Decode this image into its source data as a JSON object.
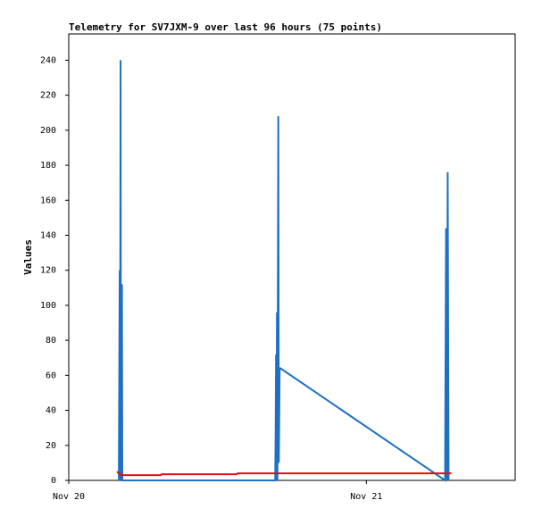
{
  "chart_data": {
    "type": "line",
    "title": "Telemetry for SV7JXM-9 over last 96 hours (75 points)",
    "y_label": "Values",
    "xlim": [
      0,
      36
    ],
    "xticks": [
      {
        "value": 0,
        "label": "Nov 20"
      },
      {
        "value": 24,
        "label": "Nov 21"
      }
    ],
    "ylim": [
      0,
      255
    ],
    "yticks": [
      0,
      20,
      40,
      60,
      80,
      100,
      120,
      140,
      160,
      180,
      200,
      220,
      240
    ],
    "series": [
      {
        "color": "#1f6fc5",
        "x": [
          4.04,
          4.11,
          4.14,
          4.18,
          4.21,
          4.29,
          4.32,
          16.65,
          16.68,
          16.72,
          16.76,
          16.79,
          16.83,
          16.9,
          16.94,
          17.01,
          17.08,
          30.35,
          30.43,
          30.49,
          30.56,
          30.63
        ],
        "values": [
          0,
          120,
          0,
          240,
          0,
          112,
          0,
          0,
          24,
          72,
          0,
          96,
          0,
          208,
          10,
          64,
          64,
          0,
          144,
          0,
          176,
          0
        ]
      },
      {
        "color": "#e01010",
        "x": [
          3.89,
          4.18,
          7.42,
          7.5,
          13.55,
          13.62,
          30.85
        ],
        "values": [
          5,
          3,
          3,
          3.5,
          3.5,
          4,
          4
        ]
      }
    ]
  }
}
